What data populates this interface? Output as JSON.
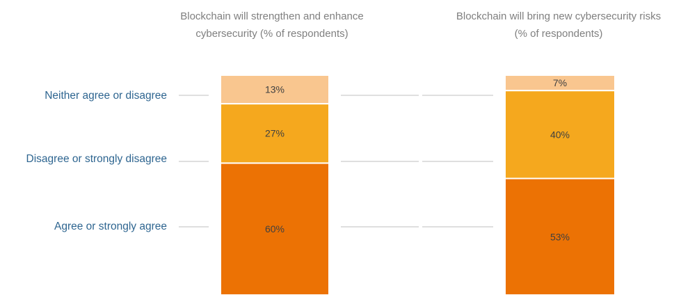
{
  "chart_data": {
    "type": "bar",
    "stacked": true,
    "unit": "%",
    "categories": [
      "Blockchain will strengthen and enhance cybersecurity (% of respondents)",
      "Blockchain will bring new cybersecurity risks (% of respondents)"
    ],
    "column_titles": [
      [
        "Blockchain will strengthen and enhance",
        "cybersecurity (% of respondents)"
      ],
      [
        "Blockchain will bring new cybersecurity risks",
        "(% of respondents)"
      ]
    ],
    "series": [
      {
        "name": "Agree or strongly agree",
        "values": [
          60,
          53
        ],
        "labels": [
          "60%",
          "53%"
        ]
      },
      {
        "name": "Disagree or strongly disagree",
        "values": [
          27,
          40
        ],
        "labels": [
          "27%",
          "40%"
        ]
      },
      {
        "name": "Neither agree or disagree",
        "values": [
          13,
          7
        ],
        "labels": [
          "13%",
          "7%"
        ]
      }
    ],
    "colors": {
      "Agree or strongly agree": "#ec7204",
      "Disagree or strongly disagree": "#f5a81e",
      "Neither agree or disagree": "#f9c68f",
      "labels": "#2e6590",
      "titles": "#7f7f7f",
      "guides": "#bfbfbf"
    },
    "ylim": [
      0,
      100
    ],
    "legend": "left",
    "grid": false
  }
}
